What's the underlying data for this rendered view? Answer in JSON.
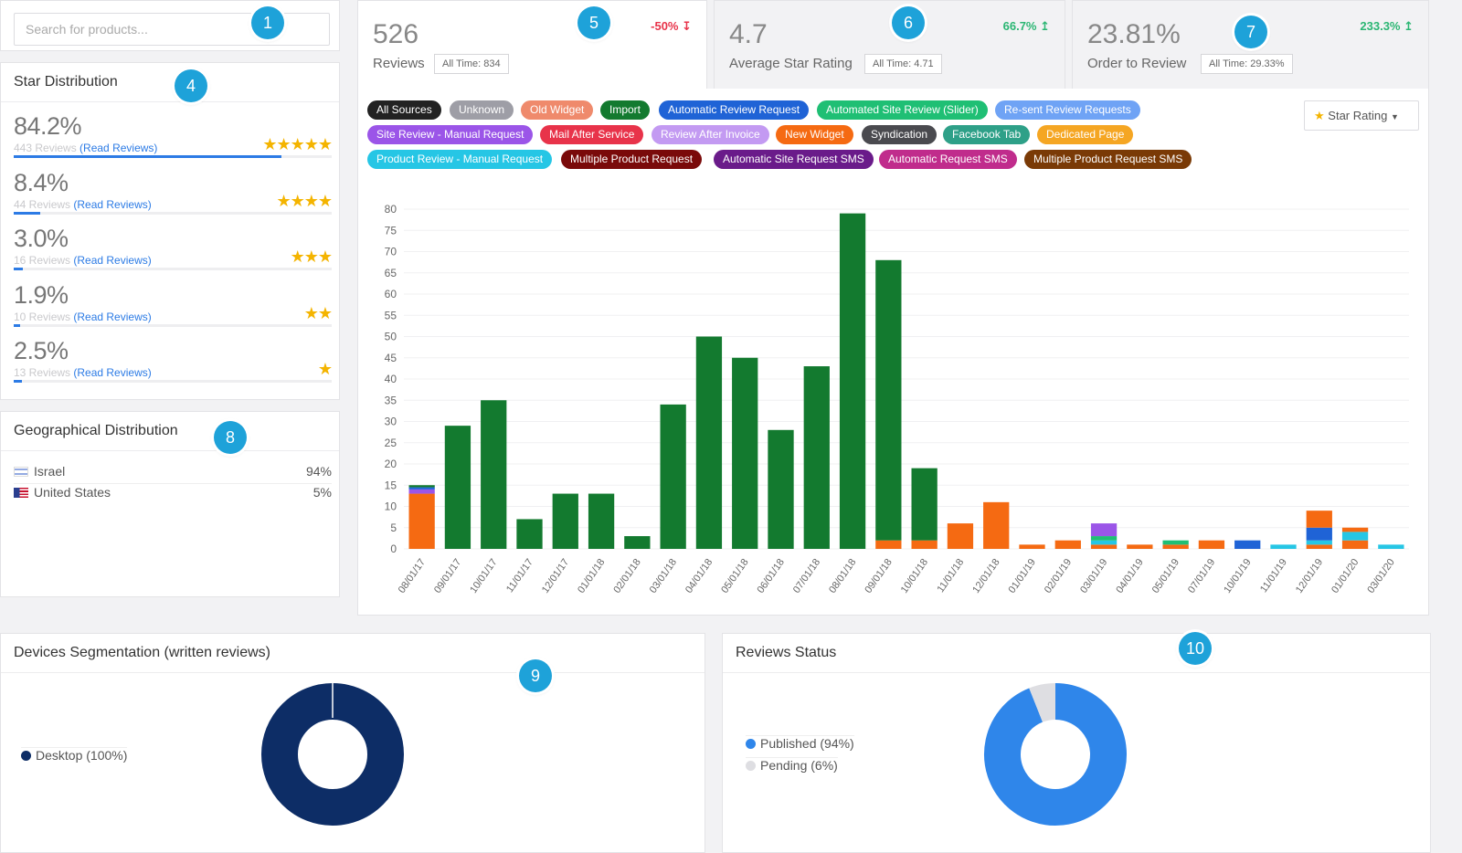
{
  "search": {
    "placeholder": "Search for products..."
  },
  "callouts": [
    "1",
    "4",
    "5",
    "6",
    "7",
    "8",
    "9",
    "10"
  ],
  "star_distribution": {
    "title": "Star Distribution",
    "rows": [
      {
        "pct": "84.2%",
        "reviews": "443 Reviews",
        "read": "(Read Reviews)",
        "stars": "★★★★★",
        "fill": 0.842
      },
      {
        "pct": "8.4%",
        "reviews": "44 Reviews",
        "read": "(Read Reviews)",
        "stars": "★★★★",
        "fill": 0.084
      },
      {
        "pct": "3.0%",
        "reviews": "16 Reviews",
        "read": "(Read Reviews)",
        "stars": "★★★",
        "fill": 0.03
      },
      {
        "pct": "1.9%",
        "reviews": "10 Reviews",
        "read": "(Read Reviews)",
        "stars": "★★",
        "fill": 0.019
      },
      {
        "pct": "2.5%",
        "reviews": "13 Reviews",
        "read": "(Read Reviews)",
        "stars": "★",
        "fill": 0.025
      }
    ]
  },
  "geo": {
    "title": "Geographical Distribution",
    "rows": [
      {
        "country": "Israel",
        "pct": "94%"
      },
      {
        "country": "United States",
        "pct": "5%"
      }
    ]
  },
  "kpis": {
    "reviews": {
      "value": "526",
      "label": "Reviews",
      "all_time": "All Time: 834",
      "delta": "-50% ↧",
      "delta_color": "#e8334a"
    },
    "rating": {
      "value": "4.7",
      "label": "Average Star Rating",
      "all_time": "All Time: 4.71",
      "delta": "66.7% ↥",
      "delta_color": "#2bb673"
    },
    "order": {
      "value": "23.81%",
      "label": "Order to Review",
      "all_time": "All Time: 29.33%",
      "delta": "233.3% ↥",
      "delta_color": "#2bb673"
    }
  },
  "sources": [
    {
      "label": "All Sources",
      "color": "#222222"
    },
    {
      "label": "Unknown",
      "color": "#9e9ea6"
    },
    {
      "label": "Old Widget",
      "color": "#ef8a6c"
    },
    {
      "label": "Import",
      "color": "#137a2f"
    },
    {
      "label": "Automatic Review Request",
      "color": "#1f63d6"
    },
    {
      "label": "Automated Site Review (Slider)",
      "color": "#1fbf74"
    },
    {
      "label": "Re-sent Review Requests",
      "color": "#6fa3f5"
    },
    {
      "label": "Site Review - Manual Request",
      "color": "#9b55e8"
    },
    {
      "label": "Mail After Service",
      "color": "#e8334a"
    },
    {
      "label": "Review After Invoice",
      "color": "#c39af2"
    },
    {
      "label": "New Widget",
      "color": "#f56a12"
    },
    {
      "label": "Syndication",
      "color": "#4a4a4f"
    },
    {
      "label": "Facebook Tab",
      "color": "#2ea088"
    },
    {
      "label": "Dedicated Page",
      "color": "#f5a623"
    },
    {
      "label": "Product Review - Manual Request",
      "color": "#26c6e5"
    },
    {
      "label": "Multiple Product Request",
      "color": "#7a0a0a"
    },
    {
      "label": "Automatic Site Request SMS",
      "color": "#6a1b8a"
    },
    {
      "label": "Automatic Request SMS",
      "color": "#c02c8c"
    },
    {
      "label": "Multiple Product Request SMS",
      "color": "#7a3a06"
    }
  ],
  "dropdown": {
    "label": "Star Rating",
    "icon": "star-icon"
  },
  "chart_data": {
    "type": "bar",
    "stacked": true,
    "ylim": [
      0,
      80
    ],
    "yticks": [
      0,
      5,
      10,
      15,
      20,
      25,
      30,
      35,
      40,
      45,
      50,
      55,
      60,
      65,
      70,
      75,
      80
    ],
    "grid": true,
    "categories": [
      "08/01/17",
      "09/01/17",
      "10/01/17",
      "11/01/17",
      "12/01/17",
      "01/01/18",
      "02/01/18",
      "03/01/18",
      "04/01/18",
      "05/01/18",
      "06/01/18",
      "07/01/18",
      "08/01/18",
      "09/01/18",
      "10/01/18",
      "11/01/18",
      "12/01/18",
      "01/01/19",
      "02/01/19",
      "03/01/19",
      "04/01/19",
      "05/01/19",
      "07/01/19",
      "10/01/19",
      "11/01/19",
      "12/01/19",
      "01/01/20",
      "03/01/20"
    ],
    "series": [
      {
        "color": "#f56a12",
        "values": [
          13,
          0,
          0,
          0,
          0,
          0,
          0,
          0,
          0,
          0,
          0,
          0,
          0,
          2,
          2,
          6,
          11,
          1,
          2,
          1,
          1,
          1,
          2,
          0,
          0,
          1,
          2,
          0
        ]
      },
      {
        "color": "#26c6e5",
        "values": [
          0,
          0,
          0,
          0,
          0,
          0,
          0,
          0,
          0,
          0,
          0,
          0,
          0,
          0,
          0,
          0,
          0,
          0,
          0,
          1,
          0,
          0,
          0,
          0,
          1,
          1,
          2,
          1
        ]
      },
      {
        "color": "#1fbf74",
        "values": [
          0,
          0,
          0,
          0,
          0,
          0,
          0,
          0,
          0,
          0,
          0,
          0,
          0,
          0,
          0,
          0,
          0,
          0,
          0,
          1,
          0,
          1,
          0,
          0,
          0,
          0,
          0,
          0
        ]
      },
      {
        "color": "#9b55e8",
        "values": [
          1,
          0,
          0,
          0,
          0,
          0,
          0,
          0,
          0,
          0,
          0,
          0,
          0,
          0,
          0,
          0,
          0,
          0,
          0,
          3,
          0,
          0,
          0,
          0,
          0,
          0,
          0,
          0
        ]
      },
      {
        "color": "#1f63d6",
        "values": [
          0.5,
          0,
          0,
          0,
          0,
          0,
          0,
          0,
          0,
          0,
          0,
          0,
          0,
          0,
          0,
          0,
          0,
          0,
          0,
          0,
          0,
          0,
          0,
          2,
          0,
          3,
          0,
          0
        ]
      },
      {
        "color": "#f56a12",
        "values": [
          0,
          0,
          0,
          0,
          0,
          0,
          0,
          0,
          0,
          0,
          0,
          0,
          0,
          0,
          0,
          0,
          0,
          0,
          0,
          0,
          0,
          0,
          0,
          0,
          0,
          4,
          1,
          0
        ]
      },
      {
        "color": "#137a2f",
        "values": [
          0.5,
          29,
          35,
          7,
          13,
          13,
          3,
          34,
          50,
          45,
          28,
          43,
          79,
          66,
          17,
          0,
          0,
          0,
          0,
          0,
          0,
          0,
          0,
          0,
          0,
          0,
          0,
          0
        ]
      }
    ]
  },
  "devices": {
    "title": "Devices Segmentation (written reviews)",
    "legend": "Desktop (100%)",
    "color": "#0d2d66",
    "share": 1.0
  },
  "status": {
    "title": "Reviews Status",
    "legend": [
      {
        "label": "Published (94%)",
        "color": "#2f86ea",
        "share": 0.94
      },
      {
        "label": "Pending (6%)",
        "color": "#dedee2",
        "share": 0.06
      }
    ]
  }
}
